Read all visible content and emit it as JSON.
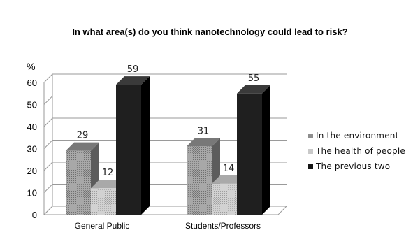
{
  "chart_data": {
    "type": "bar",
    "title": "In what area(s) do you think nanotechnology could lead to risk?",
    "ylabel": "%",
    "ylim": [
      0,
      60
    ],
    "yticks": [
      "0",
      "10",
      "20",
      "30",
      "40",
      "50",
      "60"
    ],
    "categories": [
      "General Public",
      "Students/Professors"
    ],
    "series": [
      {
        "name": "In the environment",
        "values": [
          29,
          31
        ],
        "color": "#9a9a9a"
      },
      {
        "name": "The health of people",
        "values": [
          12,
          14
        ],
        "color": "#c6c6c6"
      },
      {
        "name": "The previous two",
        "values": [
          59,
          55
        ],
        "color": "#1e1e1e"
      }
    ],
    "grid": true,
    "legend": "right"
  }
}
